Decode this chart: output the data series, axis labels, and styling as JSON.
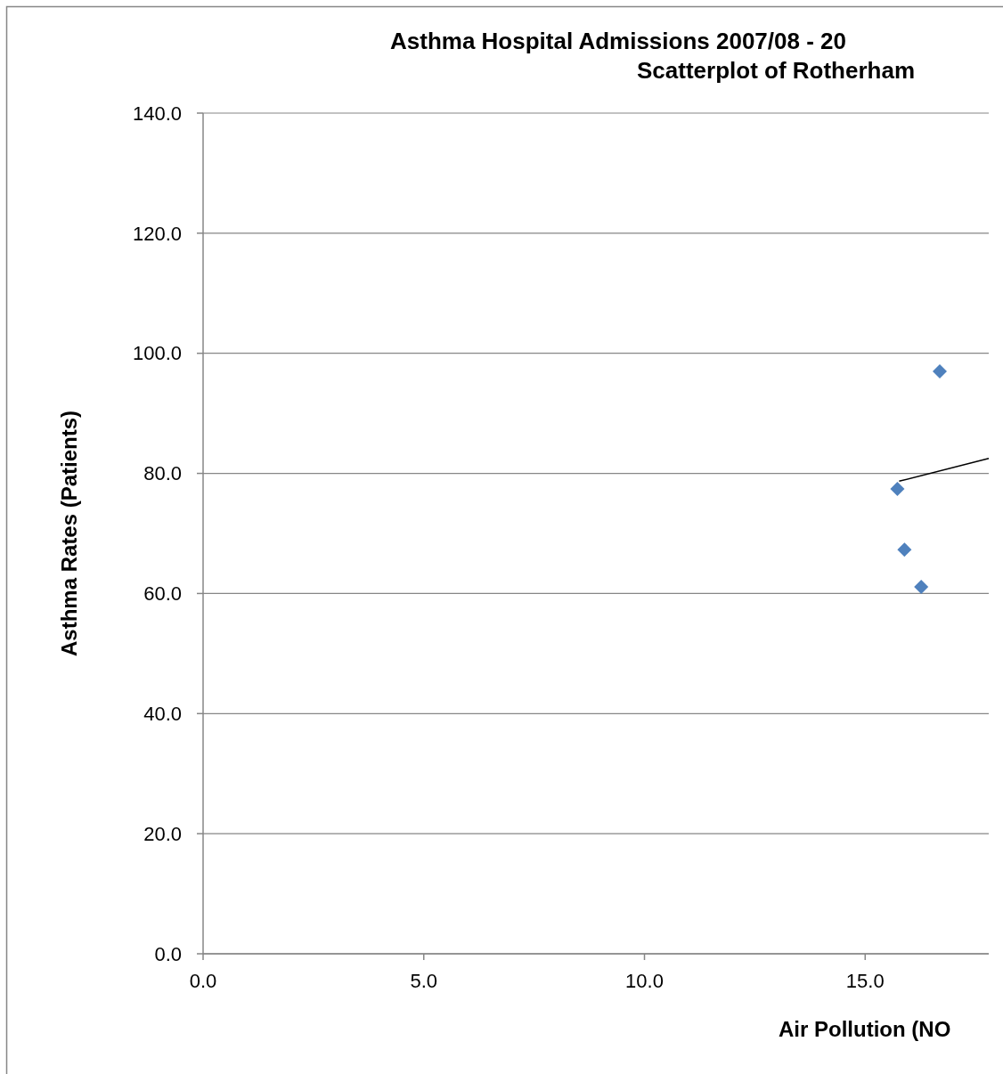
{
  "chart_data": {
    "type": "scatter",
    "title": "Asthma Hospital Admissions 2007/08 - 20",
    "subtitle": "Scatterplot of Rotherham",
    "xlabel": "Air Pollution (NO",
    "ylabel": "Asthma Rates (Patients)",
    "xlim": [
      0,
      17.8
    ],
    "xticks": [
      {
        "value": 0,
        "label": "0.0"
      },
      {
        "value": 5,
        "label": "5.0"
      },
      {
        "value": 10,
        "label": "10.0"
      },
      {
        "value": 15,
        "label": "15.0"
      }
    ],
    "ylim": [
      0,
      140
    ],
    "yticks": [
      {
        "value": 0,
        "label": "0.0"
      },
      {
        "value": 20,
        "label": "20.0"
      },
      {
        "value": 40,
        "label": "40.0"
      },
      {
        "value": 60,
        "label": "60.0"
      },
      {
        "value": 80,
        "label": "80.0"
      },
      {
        "value": 100,
        "label": "100.0"
      },
      {
        "value": 120,
        "label": "120.0"
      },
      {
        "value": 140,
        "label": "140.0"
      }
    ],
    "grid": "y",
    "marker": "diamond",
    "series": [
      {
        "color": "#4f81bd",
        "x": [
          15.73,
          15.89,
          16.27,
          16.69
        ],
        "values": [
          77.4,
          67.3,
          61.1,
          97.0
        ]
      },
      {
        "type": "line",
        "color": "#000000",
        "marker": "none",
        "x": [
          15.77,
          17.8
        ],
        "values": [
          78.7,
          82.5
        ]
      }
    ]
  }
}
